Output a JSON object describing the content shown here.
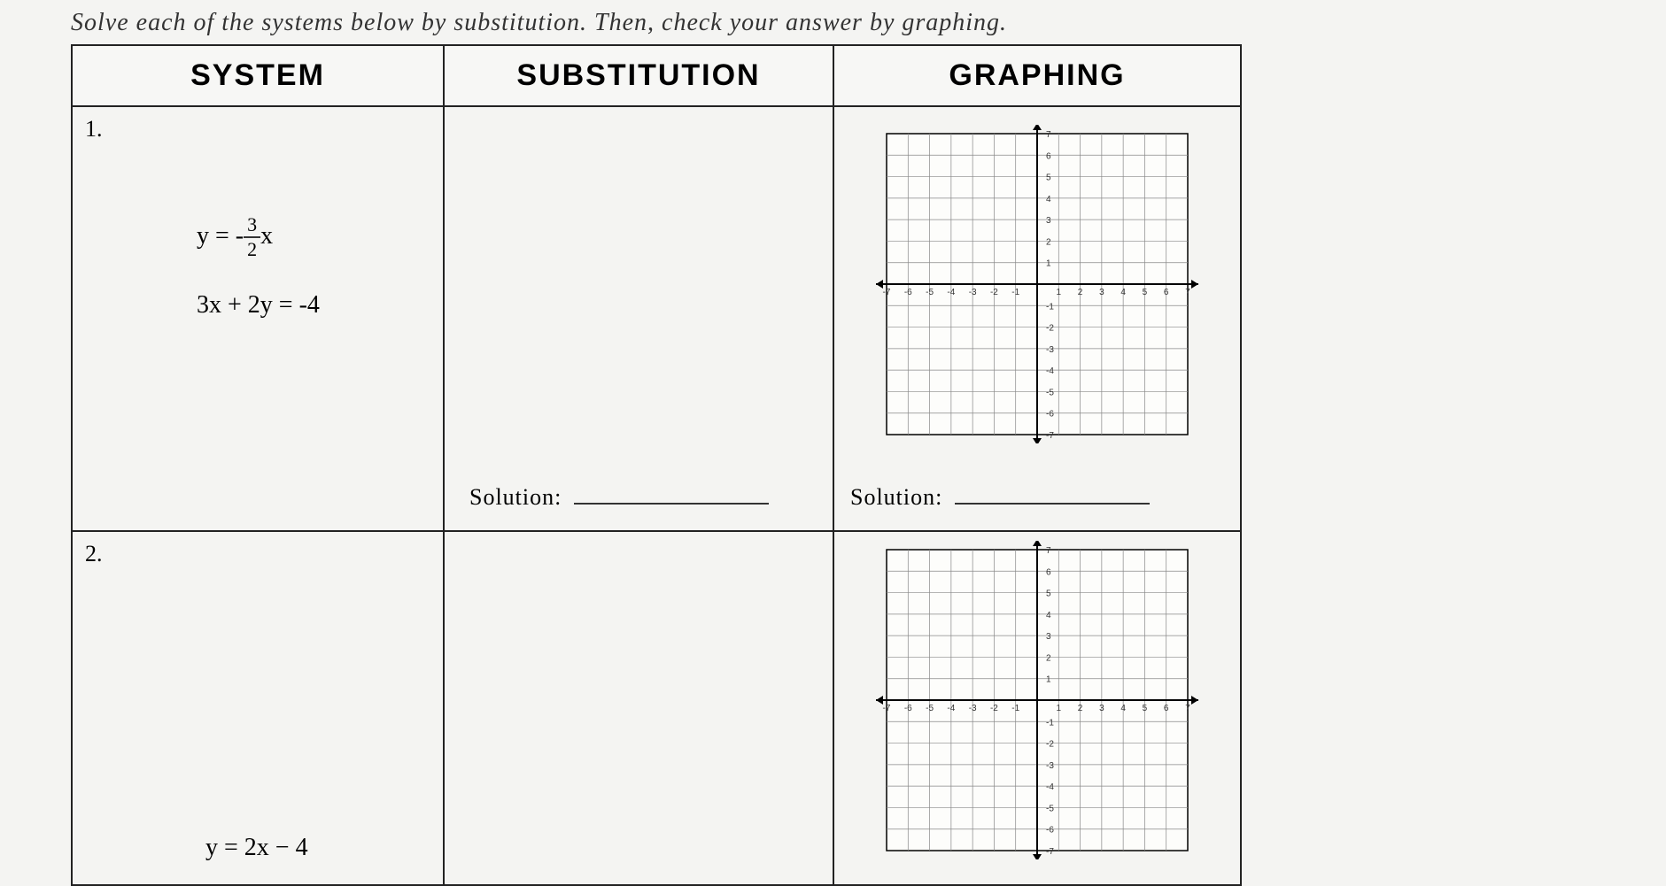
{
  "instruction": "Solve each of the systems below by substitution. Then, check your answer by graphing.",
  "headers": {
    "col1": "SYSTEM",
    "col2": "SUBSTITUTION",
    "col3": "GRAPHING"
  },
  "problems": [
    {
      "number": "1.",
      "equations": {
        "eq1_prefix": "y = -",
        "eq1_frac_num": "3",
        "eq1_frac_den": "2",
        "eq1_suffix": "x",
        "eq2": "3x + 2y = -4"
      }
    },
    {
      "number": "2.",
      "equations": {
        "eq2": "y = 2x − 4"
      }
    }
  ],
  "solution_label": "Solution:",
  "graph": {
    "size": 340,
    "cells": 14,
    "range_min": -7,
    "range_max": 7,
    "grid_color": "#888888",
    "axis_color": "#000000",
    "tick_font": 10,
    "bg": "#fdfdfb",
    "axis_labels_pos": [
      1,
      2,
      3,
      4,
      5,
      6,
      7
    ],
    "axis_labels_neg": [
      -1,
      -2,
      -3,
      -4,
      -5,
      -6,
      -7
    ]
  }
}
